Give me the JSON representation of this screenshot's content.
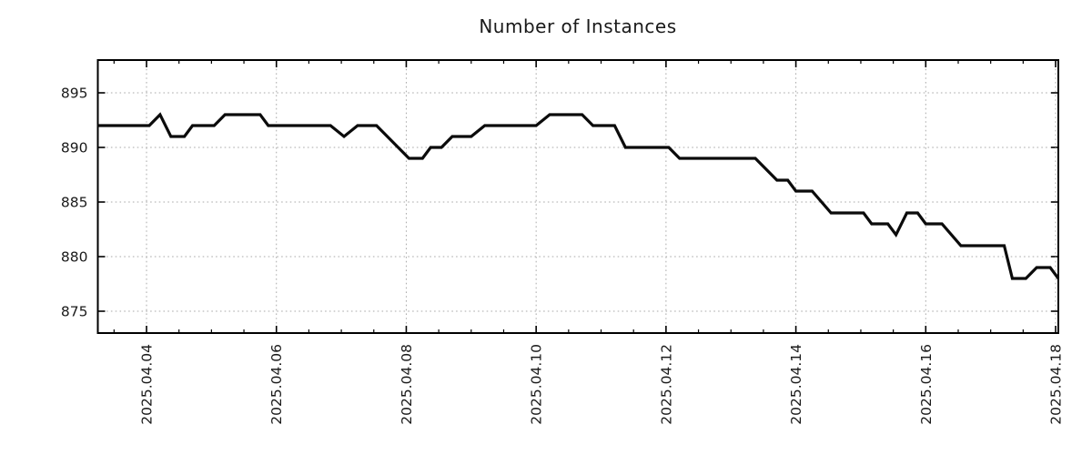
{
  "chart_data": {
    "type": "line",
    "title": "Number of Instances",
    "x_axis": {
      "start": "2025-04-03 06:00",
      "end": "2025-04-18 01:00",
      "major_tick_labels": [
        "2025.04.04",
        "2025.04.06",
        "2025.04.08",
        "2025.04.10",
        "2025.04.12",
        "2025.04.14",
        "2025.04.16",
        "2025.04.18"
      ],
      "major_interval_days": 2,
      "minor_interval_days": 0.5
    },
    "y_axis": {
      "tick_labels": [
        "875",
        "880",
        "885",
        "890",
        "895"
      ],
      "ticks": [
        875,
        880,
        885,
        890,
        895
      ],
      "lim": [
        873,
        898
      ]
    },
    "grid": {
      "on": true,
      "style": "dotted",
      "color": "#a9a9a9"
    },
    "legend": "none",
    "series": [
      {
        "name": "instances",
        "color": "#0b0b0b",
        "line_width": 3.2,
        "points": [
          [
            "2025-04-03 06:00",
            892
          ],
          [
            "2025-04-04 01:00",
            892
          ],
          [
            "2025-04-04 05:00",
            893
          ],
          [
            "2025-04-04 09:00",
            891
          ],
          [
            "2025-04-04 14:00",
            891
          ],
          [
            "2025-04-04 17:00",
            892
          ],
          [
            "2025-04-05 01:00",
            892
          ],
          [
            "2025-04-05 05:00",
            893
          ],
          [
            "2025-04-05 18:00",
            893
          ],
          [
            "2025-04-05 21:00",
            892
          ],
          [
            "2025-04-06 20:00",
            892
          ],
          [
            "2025-04-07 01:00",
            891
          ],
          [
            "2025-04-07 06:00",
            892
          ],
          [
            "2025-04-07 13:00",
            892
          ],
          [
            "2025-04-08 01:00",
            889
          ],
          [
            "2025-04-08 06:00",
            889
          ],
          [
            "2025-04-08 09:00",
            890
          ],
          [
            "2025-04-08 13:00",
            890
          ],
          [
            "2025-04-08 17:00",
            891
          ],
          [
            "2025-04-09 00:00",
            891
          ],
          [
            "2025-04-09 05:00",
            892
          ],
          [
            "2025-04-10 00:00",
            892
          ],
          [
            "2025-04-10 05:00",
            893
          ],
          [
            "2025-04-10 17:00",
            893
          ],
          [
            "2025-04-10 21:00",
            892
          ],
          [
            "2025-04-11 05:00",
            892
          ],
          [
            "2025-04-11 09:00",
            890
          ],
          [
            "2025-04-12 01:00",
            890
          ],
          [
            "2025-04-12 05:00",
            889
          ],
          [
            "2025-04-13 09:00",
            889
          ],
          [
            "2025-04-13 17:00",
            887
          ],
          [
            "2025-04-13 21:00",
            887
          ],
          [
            "2025-04-14 00:00",
            886
          ],
          [
            "2025-04-14 06:00",
            886
          ],
          [
            "2025-04-14 13:00",
            884
          ],
          [
            "2025-04-15 01:00",
            884
          ],
          [
            "2025-04-15 04:00",
            883
          ],
          [
            "2025-04-15 10:00",
            883
          ],
          [
            "2025-04-15 13:00",
            882
          ],
          [
            "2025-04-15 17:00",
            884
          ],
          [
            "2025-04-15 21:00",
            884
          ],
          [
            "2025-04-16 00:00",
            883
          ],
          [
            "2025-04-16 06:00",
            883
          ],
          [
            "2025-04-16 13:00",
            881
          ],
          [
            "2025-04-17 05:00",
            881
          ],
          [
            "2025-04-17 08:00",
            878
          ],
          [
            "2025-04-17 13:00",
            878
          ],
          [
            "2025-04-17 17:00",
            879
          ],
          [
            "2025-04-17 22:00",
            879
          ],
          [
            "2025-04-18 01:00",
            878
          ]
        ]
      }
    ],
    "style": {
      "border_color": "#000000",
      "tick_color": "#000000",
      "label_color": "#1a1a1a",
      "background": "#ffffff"
    }
  }
}
